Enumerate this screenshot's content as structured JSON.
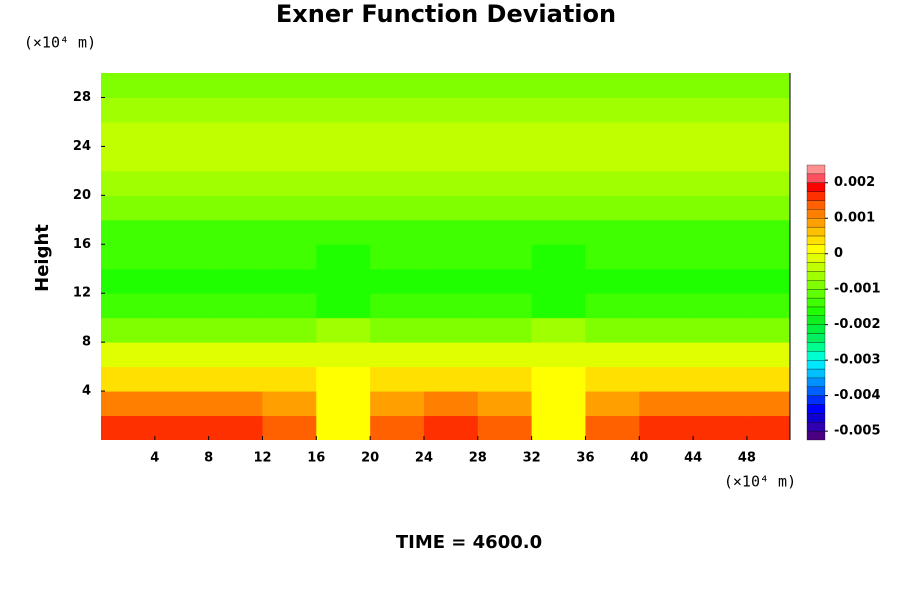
{
  "chart_data": {
    "type": "contour",
    "title": "Exner Function Deviation",
    "y_label": "Height",
    "y_unit_label": "(×10⁴ m)",
    "x_unit_label": "(×10⁴ m)",
    "annotation": "TIME = 4600.0",
    "xlim": [
      0,
      51.2
    ],
    "ylim": [
      0,
      30
    ],
    "xticks": [
      4,
      8,
      12,
      16,
      20,
      24,
      28,
      32,
      36,
      40,
      44,
      48
    ],
    "yticks": [
      4,
      8,
      12,
      16,
      20,
      24,
      28
    ],
    "x": [
      2,
      6,
      10,
      14,
      18,
      22,
      26,
      30,
      34,
      38,
      42,
      46,
      50
    ],
    "y": [
      1,
      3,
      5,
      7,
      9,
      11,
      13,
      15,
      17,
      19,
      21,
      23,
      25,
      27,
      29
    ],
    "z": [
      [
        0.0017,
        0.0017,
        0.0017,
        0.0014,
        0.0002,
        0.0014,
        0.0017,
        0.0014,
        0.0002,
        0.0014,
        0.0017,
        0.0017,
        0.0017
      ],
      [
        0.0012,
        0.0012,
        0.0012,
        0.0009,
        0.0,
        0.0009,
        0.0012,
        0.0009,
        0.0,
        0.0009,
        0.0012,
        0.0012,
        0.0012
      ],
      [
        0.0004,
        0.0004,
        0.0004,
        0.0003,
        0.0001,
        0.0003,
        0.0004,
        0.0003,
        0.0001,
        0.0003,
        0.0004,
        0.0004,
        0.0004
      ],
      [
        -0.0002,
        -0.0002,
        -0.0002,
        -0.0002,
        -0.0001,
        -0.0002,
        -0.0002,
        -0.0002,
        -0.0001,
        -0.0002,
        -0.0002,
        -0.0002,
        -0.0002
      ],
      [
        -0.0008,
        -0.0008,
        -0.0008,
        -0.0008,
        -0.0007,
        -0.0008,
        -0.0008,
        -0.0008,
        -0.0007,
        -0.0008,
        -0.0008,
        -0.0008,
        -0.0008
      ],
      [
        -0.0013,
        -0.0013,
        -0.0013,
        -0.0014,
        -0.0016,
        -0.0014,
        -0.0013,
        -0.0014,
        -0.0016,
        -0.0014,
        -0.0013,
        -0.0013,
        -0.0013
      ],
      [
        -0.0016,
        -0.0016,
        -0.0016,
        -0.0016,
        -0.0017,
        -0.0016,
        -0.0016,
        -0.0016,
        -0.0017,
        -0.0016,
        -0.0016,
        -0.0016,
        -0.0016
      ],
      [
        -0.0015,
        -0.0015,
        -0.0015,
        -0.0015,
        -0.0016,
        -0.0015,
        -0.0015,
        -0.0015,
        -0.0016,
        -0.0015,
        -0.0015,
        -0.0015,
        -0.0015
      ],
      [
        -0.0013,
        -0.0013,
        -0.0013,
        -0.0013,
        -0.0013,
        -0.0013,
        -0.0013,
        -0.0013,
        -0.0013,
        -0.0013,
        -0.0013,
        -0.0013,
        -0.0013
      ],
      [
        -0.001,
        -0.001,
        -0.001,
        -0.001,
        -0.001,
        -0.001,
        -0.001,
        -0.001,
        -0.001,
        -0.001,
        -0.001,
        -0.001,
        -0.001
      ],
      [
        -0.0006,
        -0.0006,
        -0.0006,
        -0.0006,
        -0.0006,
        -0.0006,
        -0.0006,
        -0.0006,
        -0.0006,
        -0.0006,
        -0.0006,
        -0.0006,
        -0.0006
      ],
      [
        -0.0004,
        -0.0004,
        -0.0004,
        -0.0004,
        -0.0004,
        -0.0004,
        -0.0004,
        -0.0004,
        -0.0004,
        -0.0004,
        -0.0004,
        -0.0004,
        -0.0004
      ],
      [
        -0.0004,
        -0.0004,
        -0.0004,
        -0.0004,
        -0.0004,
        -0.0004,
        -0.0004,
        -0.0004,
        -0.0004,
        -0.0004,
        -0.0004,
        -0.0004,
        -0.0004
      ],
      [
        -0.0006,
        -0.0006,
        -0.0006,
        -0.0006,
        -0.0006,
        -0.0006,
        -0.0006,
        -0.0006,
        -0.0006,
        -0.0006,
        -0.0006,
        -0.0006,
        -0.0006
      ],
      [
        -0.0009,
        -0.0009,
        -0.0009,
        -0.0009,
        -0.0009,
        -0.0009,
        -0.0009,
        -0.0009,
        -0.0009,
        -0.0009,
        -0.0009,
        -0.0009,
        -0.0009
      ]
    ],
    "levels": [
      -0.00525,
      -0.005,
      -0.00475,
      -0.0045,
      -0.00425,
      -0.004,
      -0.00375,
      -0.0035,
      -0.00325,
      -0.003,
      -0.00275,
      -0.0025,
      -0.00225,
      -0.002,
      -0.00175,
      -0.0015,
      -0.00125,
      -0.001,
      -0.00075,
      -0.0005,
      -0.00025,
      0,
      0.00025,
      0.0005,
      0.00075,
      0.001,
      0.00125,
      0.0015,
      0.00175,
      0.002,
      0.00225,
      0.0025
    ],
    "colors": [
      "#4b0082",
      "#3000b0",
      "#1000d0",
      "#0000ff",
      "#0030ff",
      "#0060ff",
      "#0090ff",
      "#00c0ff",
      "#00e8ff",
      "#00ffd0",
      "#00ff90",
      "#00f060",
      "#00f040",
      "#10f020",
      "#20ff00",
      "#40ff00",
      "#60ff00",
      "#80ff00",
      "#a0ff00",
      "#c0ff00",
      "#e0ff00",
      "#ffff00",
      "#ffe000",
      "#ffc000",
      "#ffa000",
      "#ff8000",
      "#ff6000",
      "#ff3000",
      "#ff0000",
      "#ff5060",
      "#ff9090"
    ],
    "colorbar_ticks": [
      -0.005,
      -0.004,
      -0.003,
      -0.002,
      -0.001,
      0,
      0.001,
      0.002
    ]
  }
}
